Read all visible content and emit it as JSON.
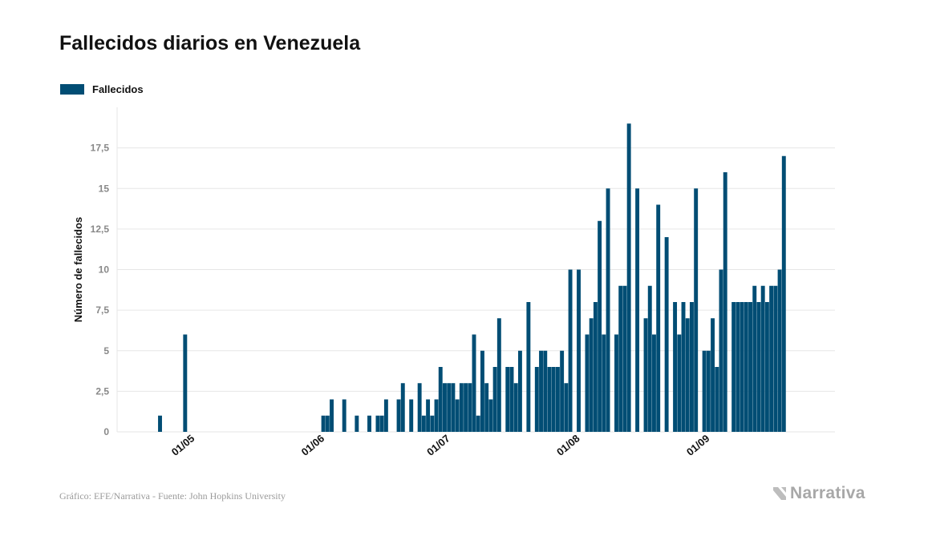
{
  "header": {
    "title": "Fallecidos diarios en Venezuela"
  },
  "footer": {
    "source": "Gráfico: EFE/Narrativa - Fuente: John Hopkins University",
    "brand": "Narrativa"
  },
  "colors": {
    "bar": "#014d74",
    "grid": "#e6e6e6",
    "tick_label": "#888888",
    "axis_label": "#111111"
  },
  "chart_data": {
    "type": "bar",
    "title": "Fallecidos diarios en Venezuela",
    "xlabel": "",
    "ylabel": "Número de fallecidos",
    "ylim": [
      0,
      20
    ],
    "yticks": [
      0,
      2.5,
      5,
      7.5,
      10,
      12.5,
      15,
      17.5
    ],
    "ytick_labels": [
      "0",
      "2,5",
      "5",
      "7,5",
      "10",
      "12,5",
      "15",
      "17,5"
    ],
    "xticks": [
      {
        "date": "2020-05-01",
        "label": "01/05"
      },
      {
        "date": "2020-06-01",
        "label": "01/06"
      },
      {
        "date": "2020-07-01",
        "label": "01/07"
      },
      {
        "date": "2020-08-01",
        "label": "01/08"
      },
      {
        "date": "2020-09-01",
        "label": "01/09"
      }
    ],
    "grid": true,
    "legend": {
      "position": "top-left",
      "entries": [
        "Fallecidos"
      ]
    },
    "series": [
      {
        "name": "Fallecidos",
        "x": [
          "2020-04-22",
          "2020-04-23",
          "2020-04-24",
          "2020-04-25",
          "2020-04-26",
          "2020-04-27",
          "2020-04-28",
          "2020-04-29",
          "2020-04-30",
          "2020-05-01",
          "2020-05-02",
          "2020-05-03",
          "2020-05-04",
          "2020-05-05",
          "2020-05-06",
          "2020-05-07",
          "2020-05-08",
          "2020-05-09",
          "2020-05-10",
          "2020-05-11",
          "2020-05-12",
          "2020-05-13",
          "2020-05-14",
          "2020-05-15",
          "2020-05-16",
          "2020-05-17",
          "2020-05-18",
          "2020-05-19",
          "2020-05-20",
          "2020-05-21",
          "2020-05-22",
          "2020-05-23",
          "2020-05-24",
          "2020-05-25",
          "2020-05-26",
          "2020-05-27",
          "2020-05-28",
          "2020-05-29",
          "2020-05-30",
          "2020-05-31",
          "2020-06-01",
          "2020-06-02",
          "2020-06-03",
          "2020-06-04",
          "2020-06-05",
          "2020-06-06",
          "2020-06-07",
          "2020-06-08",
          "2020-06-09",
          "2020-06-10",
          "2020-06-11",
          "2020-06-12",
          "2020-06-13",
          "2020-06-14",
          "2020-06-15",
          "2020-06-16",
          "2020-06-17",
          "2020-06-18",
          "2020-06-19",
          "2020-06-20",
          "2020-06-21",
          "2020-06-22",
          "2020-06-23",
          "2020-06-24",
          "2020-06-25",
          "2020-06-26",
          "2020-06-27",
          "2020-06-28",
          "2020-06-29",
          "2020-06-30",
          "2020-07-01",
          "2020-07-02",
          "2020-07-03",
          "2020-07-04",
          "2020-07-05",
          "2020-07-06",
          "2020-07-07",
          "2020-07-08",
          "2020-07-09",
          "2020-07-10",
          "2020-07-11",
          "2020-07-12",
          "2020-07-13",
          "2020-07-14",
          "2020-07-15",
          "2020-07-16",
          "2020-07-17",
          "2020-07-18",
          "2020-07-19",
          "2020-07-20",
          "2020-07-21",
          "2020-07-22",
          "2020-07-23",
          "2020-07-24",
          "2020-07-25",
          "2020-07-26",
          "2020-07-27",
          "2020-07-28",
          "2020-07-29",
          "2020-07-30",
          "2020-07-31",
          "2020-08-01",
          "2020-08-02",
          "2020-08-03",
          "2020-08-04",
          "2020-08-05",
          "2020-08-06",
          "2020-08-07",
          "2020-08-08",
          "2020-08-09",
          "2020-08-10",
          "2020-08-11",
          "2020-08-12",
          "2020-08-13",
          "2020-08-14",
          "2020-08-15",
          "2020-08-16",
          "2020-08-17",
          "2020-08-18",
          "2020-08-19",
          "2020-08-20",
          "2020-08-21",
          "2020-08-22",
          "2020-08-23",
          "2020-08-24",
          "2020-08-25",
          "2020-08-26",
          "2020-08-27",
          "2020-08-28",
          "2020-08-29",
          "2020-08-30",
          "2020-08-31",
          "2020-09-01",
          "2020-09-02",
          "2020-09-03",
          "2020-09-04",
          "2020-09-05",
          "2020-09-06",
          "2020-09-07",
          "2020-09-08",
          "2020-09-09",
          "2020-09-10",
          "2020-09-11",
          "2020-09-12",
          "2020-09-13",
          "2020-09-14",
          "2020-09-15",
          "2020-09-16",
          "2020-09-17",
          "2020-09-18",
          "2020-09-19",
          "2020-09-20",
          "2020-09-21",
          "2020-09-22",
          "2020-09-23"
        ],
        "values": [
          0,
          0,
          0,
          1,
          0,
          0,
          0,
          0,
          0,
          6,
          0,
          0,
          0,
          0,
          0,
          0,
          0,
          0,
          0,
          0,
          0,
          0,
          0,
          0,
          0,
          0,
          0,
          0,
          0,
          0,
          0,
          0,
          0,
          0,
          0,
          0,
          0,
          0,
          0,
          0,
          0,
          0,
          1,
          1,
          2,
          0,
          0,
          2,
          0,
          0,
          1,
          0,
          0,
          1,
          0,
          1,
          1,
          2,
          0,
          0,
          2,
          3,
          0,
          2,
          0,
          3,
          1,
          2,
          1,
          2,
          4,
          3,
          3,
          3,
          2,
          3,
          3,
          3,
          6,
          1,
          5,
          3,
          2,
          4,
          7,
          0,
          4,
          4,
          3,
          5,
          0,
          8,
          0,
          4,
          5,
          5,
          4,
          4,
          4,
          5,
          3,
          10,
          0,
          10,
          0,
          6,
          7,
          8,
          13,
          6,
          15,
          0,
          6,
          9,
          9,
          19,
          0,
          15,
          0,
          7,
          9,
          6,
          14,
          0,
          12,
          0,
          8,
          6,
          8,
          7,
          8,
          15,
          0,
          5,
          5,
          7,
          4,
          10,
          16,
          0,
          8,
          8,
          8,
          8,
          8,
          9,
          8,
          9,
          8,
          9,
          9,
          10,
          17,
          0,
          0
        ]
      }
    ]
  }
}
